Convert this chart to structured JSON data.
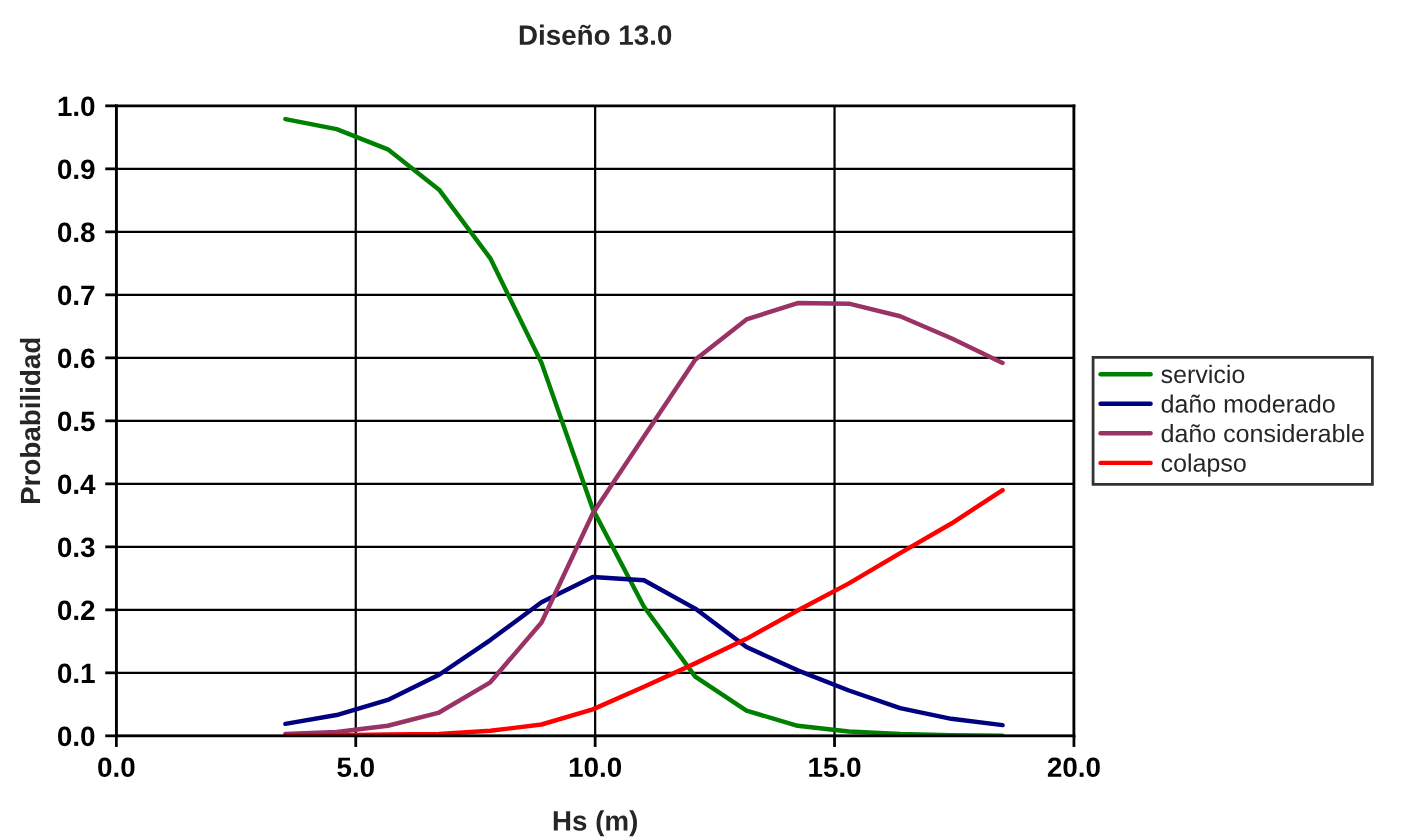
{
  "chart_data": {
    "type": "line",
    "title": "Diseño 13.0",
    "xlabel": "Hs (m)",
    "ylabel": "Probabilidad",
    "x": [
      3.53,
      4.6,
      5.67,
      6.74,
      7.81,
      8.88,
      9.95,
      11.02,
      12.09,
      13.16,
      14.23,
      15.3,
      16.37,
      17.44,
      18.51
    ],
    "series": [
      {
        "name": "servicio",
        "color": "#008000",
        "values": [
          0.979,
          0.963,
          0.931,
          0.867,
          0.758,
          0.592,
          0.36,
          0.205,
          0.094,
          0.04,
          0.016,
          0.007,
          0.003,
          0.001,
          0.0
        ]
      },
      {
        "name": "daño moderado",
        "color": "#000080",
        "values": [
          0.019,
          0.033,
          0.057,
          0.097,
          0.152,
          0.212,
          0.252,
          0.247,
          0.202,
          0.141,
          0.104,
          0.072,
          0.044,
          0.027,
          0.017
        ]
      },
      {
        "name": "daño considerable",
        "color": "#993366",
        "values": [
          0.003,
          0.006,
          0.016,
          0.037,
          0.085,
          0.18,
          0.353,
          0.475,
          0.597,
          0.661,
          0.687,
          0.686,
          0.666,
          0.631,
          0.592
        ]
      },
      {
        "name": "colapso",
        "color": "#ff0000",
        "values": [
          0.001,
          0.001,
          0.002,
          0.003,
          0.008,
          0.018,
          0.042,
          0.078,
          0.115,
          0.154,
          0.199,
          0.242,
          0.29,
          0.337,
          0.39
        ]
      }
    ],
    "xlim": [
      0,
      20
    ],
    "ylim": [
      0,
      1
    ],
    "xticks": [
      {
        "value": 0,
        "label": "0.0"
      },
      {
        "value": 5,
        "label": "5.0"
      },
      {
        "value": 10,
        "label": "10.0"
      },
      {
        "value": 15,
        "label": "15.0"
      },
      {
        "value": 20,
        "label": "20.0"
      }
    ],
    "yticks": [
      {
        "value": 0,
        "label": "0.0"
      },
      {
        "value": 0.1,
        "label": "0.1"
      },
      {
        "value": 0.2,
        "label": "0.2"
      },
      {
        "value": 0.3,
        "label": "0.3"
      },
      {
        "value": 0.4,
        "label": "0.4"
      },
      {
        "value": 0.5,
        "label": "0.5"
      },
      {
        "value": 0.6,
        "label": "0.6"
      },
      {
        "value": 0.7,
        "label": "0.7"
      },
      {
        "value": 0.8,
        "label": "0.8"
      },
      {
        "value": 0.9,
        "label": "0.9"
      },
      {
        "value": 1,
        "label": "1.0"
      }
    ],
    "grid": true,
    "legend": "right",
    "marker": "none",
    "line_style": "solid"
  }
}
